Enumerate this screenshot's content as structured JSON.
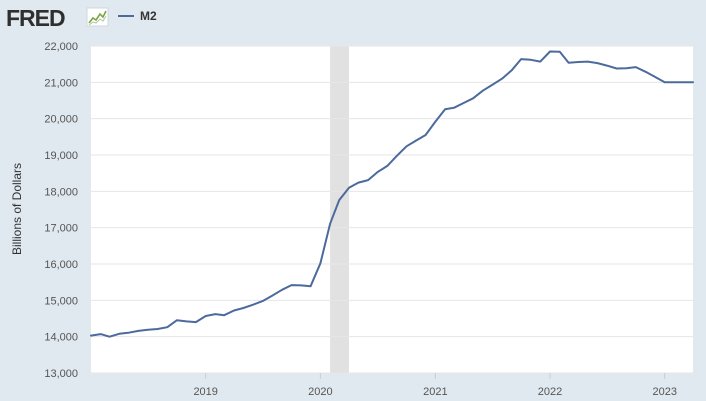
{
  "header": {
    "logo_text": "FRED"
  },
  "colors": {
    "page_background": "#e1e9f0",
    "plot_background": "#ffffff",
    "series_line": "#4c6a9c",
    "recession_band": "#e1e1e1",
    "gridline": "#e6e6e6",
    "logo_text": "#2f2f2f",
    "logo_icon_line": "#7aa646"
  },
  "chart_data": {
    "type": "line",
    "ylabel": "Billions of Dollars",
    "ylim": [
      13000,
      22000
    ],
    "yticks": [
      13000,
      14000,
      15000,
      16000,
      17000,
      18000,
      19000,
      20000,
      21000,
      22000
    ],
    "ytick_labels": [
      "13,000",
      "14,000",
      "15,000",
      "16,000",
      "17,000",
      "18,000",
      "19,000",
      "20,000",
      "21,000",
      "22,000"
    ],
    "xlim": [
      "2018-01-01",
      "2023-04-01"
    ],
    "xticks": [
      "2019-01-01",
      "2020-01-01",
      "2021-01-01",
      "2022-01-01",
      "2023-01-01"
    ],
    "xtick_labels": [
      "2019",
      "2020",
      "2021",
      "2022",
      "2023"
    ],
    "grid": true,
    "legend_position": "top-left",
    "recession_shading": [
      [
        "2020-02-01",
        "2020-04-01"
      ]
    ],
    "series": [
      {
        "name": "M2",
        "x": [
          "2018-01-01",
          "2018-02-01",
          "2018-03-01",
          "2018-04-01",
          "2018-05-01",
          "2018-06-01",
          "2018-07-01",
          "2018-08-01",
          "2018-09-01",
          "2018-10-01",
          "2018-11-01",
          "2018-12-01",
          "2019-01-01",
          "2019-02-01",
          "2019-03-01",
          "2019-04-01",
          "2019-05-01",
          "2019-06-01",
          "2019-07-01",
          "2019-08-01",
          "2019-09-01",
          "2019-10-01",
          "2019-11-01",
          "2019-12-01",
          "2020-01-01",
          "2020-02-01",
          "2020-03-01",
          "2020-04-01",
          "2020-05-01",
          "2020-06-01",
          "2020-07-01",
          "2020-08-01",
          "2020-09-01",
          "2020-10-01",
          "2020-11-01",
          "2020-12-01",
          "2021-01-01",
          "2021-02-01",
          "2021-03-01",
          "2021-04-01",
          "2021-05-01",
          "2021-06-01",
          "2021-07-01",
          "2021-08-01",
          "2021-09-01",
          "2021-10-01",
          "2021-11-01",
          "2021-12-01",
          "2022-01-01",
          "2022-02-01",
          "2022-03-01",
          "2022-04-01",
          "2022-05-01",
          "2022-06-01",
          "2022-07-01",
          "2022-08-01",
          "2022-09-01",
          "2022-10-01",
          "2022-11-01",
          "2022-12-01",
          "2023-01-01",
          "2023-02-01",
          "2023-03-01",
          "2023-04-01"
        ],
        "values": [
          14030,
          14070,
          14000,
          14080,
          14110,
          14160,
          14190,
          14210,
          14260,
          14450,
          14420,
          14400,
          14570,
          14620,
          14590,
          14720,
          14790,
          14880,
          14980,
          15130,
          15290,
          15420,
          15410,
          15390,
          16020,
          17110,
          17760,
          18100,
          18240,
          18310,
          18530,
          18700,
          18980,
          19240,
          19400,
          19550,
          19920,
          20260,
          20300,
          20430,
          20560,
          20770,
          20930,
          21100,
          21330,
          21640,
          21620,
          21570,
          21850,
          21840,
          21540,
          21560,
          21570,
          21530,
          21460,
          21380,
          21390,
          21420,
          21290,
          21150,
          21000,
          21000,
          21000,
          21000
        ]
      }
    ]
  }
}
